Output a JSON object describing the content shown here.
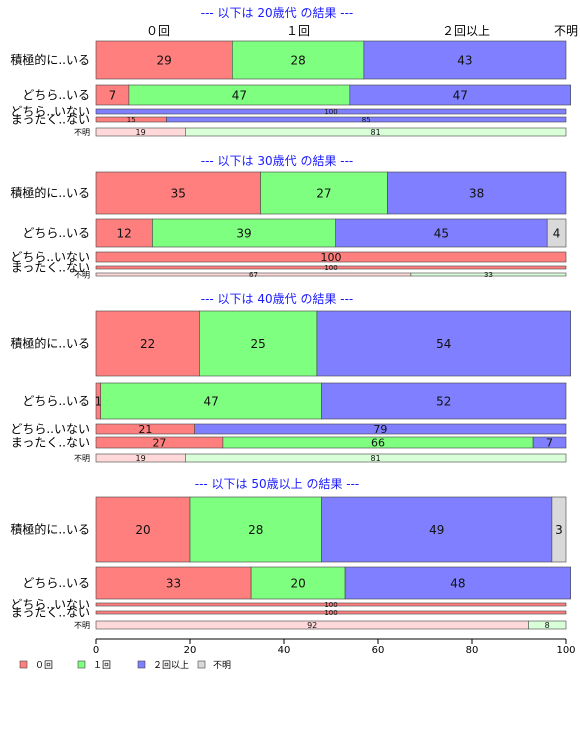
{
  "chart_data": {
    "type": "bar",
    "orientation": "horizontal",
    "stacked": true,
    "category_labels_top": [
      "０回",
      "１回",
      "２回以上",
      "不明"
    ],
    "xlim": [
      0,
      100
    ],
    "xticks": [
      0,
      20,
      40,
      60,
      80,
      100
    ],
    "colors": {
      "０回": "#ff7f7f",
      "１回": "#7fff7f",
      "２回以上": "#7f7fff",
      "不明": "#d9d9d9"
    },
    "legend": {
      "placement": "bottom-left",
      "entries": [
        "０回",
        "１回",
        "２回以上",
        "不明"
      ]
    },
    "panels": [
      {
        "title": "--- 以下は 20歳代 の結果 ---",
        "rows": [
          {
            "label": "積極的に..いる",
            "values": [
              29,
              28,
              43,
              0
            ]
          },
          {
            "label": "どちら..いる",
            "values": [
              7,
              47,
              47,
              0
            ]
          },
          {
            "label": "どちら..いない",
            "values": [
              0,
              0,
              100,
              0
            ]
          },
          {
            "label": "まったく..ない",
            "values": [
              15,
              0,
              85,
              0
            ]
          },
          {
            "label": "不明",
            "values": [
              19,
              81,
              0,
              0
            ]
          }
        ]
      },
      {
        "title": "--- 以下は 30歳代 の結果 ---",
        "rows": [
          {
            "label": "積極的に..いる",
            "values": [
              35,
              27,
              38,
              0
            ]
          },
          {
            "label": "どちら..いる",
            "values": [
              12,
              39,
              45,
              4
            ]
          },
          {
            "label": "どちら..いない",
            "values": [
              100,
              0,
              0,
              0
            ]
          },
          {
            "label": "まったく..ない",
            "values": [
              100,
              0,
              0,
              0
            ]
          },
          {
            "label": "不明",
            "values": [
              67,
              33,
              0,
              0
            ]
          }
        ]
      },
      {
        "title": "--- 以下は 40歳代 の結果 ---",
        "rows": [
          {
            "label": "積極的に..いる",
            "values": [
              22,
              25,
              54,
              0
            ]
          },
          {
            "label": "どちら..いる",
            "values": [
              1,
              47,
              52,
              0
            ]
          },
          {
            "label": "どちら..いない",
            "values": [
              21,
              0,
              79,
              0
            ]
          },
          {
            "label": "まったく..ない",
            "values": [
              27,
              66,
              7,
              0
            ]
          },
          {
            "label": "不明",
            "values": [
              19,
              81,
              0,
              0
            ]
          }
        ]
      },
      {
        "title": "--- 以下は 50歳以上 の結果 ---",
        "rows": [
          {
            "label": "積極的に..いる",
            "values": [
              20,
              28,
              49,
              3
            ]
          },
          {
            "label": "どちら..いる",
            "values": [
              33,
              20,
              48,
              0
            ]
          },
          {
            "label": "どちら..いない",
            "values": [
              100,
              0,
              0,
              0
            ]
          },
          {
            "label": "まったく..ない",
            "values": [
              100,
              0,
              0,
              0
            ]
          },
          {
            "label": "不明",
            "values": [
              92,
              8,
              0,
              0
            ]
          }
        ]
      }
    ]
  }
}
